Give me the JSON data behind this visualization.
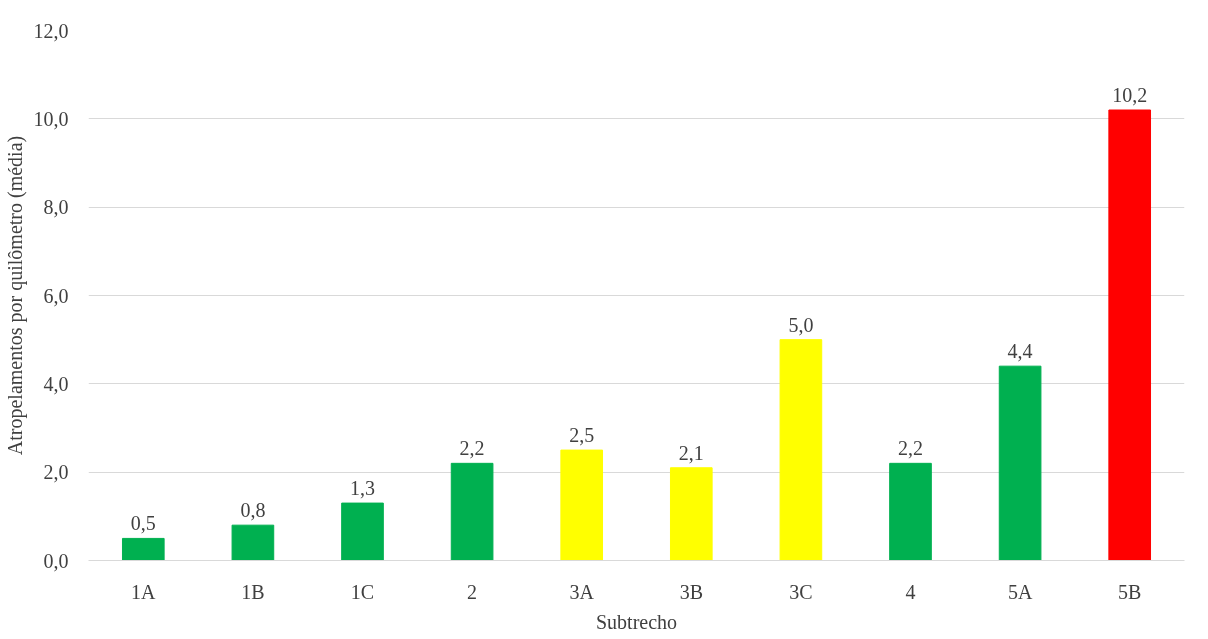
{
  "chart_data": {
    "type": "bar",
    "xlabel": "Subtrecho",
    "ylabel": "Atropelamentos por quilômetro (média)",
    "categories": [
      "1A",
      "1B",
      "1C",
      "2",
      "3A",
      "3B",
      "3C",
      "4",
      "5A",
      "5B"
    ],
    "values": [
      0.5,
      0.8,
      1.3,
      2.2,
      2.5,
      2.1,
      5.0,
      2.2,
      4.4,
      10.2
    ],
    "colors": [
      "#00b050",
      "#00b050",
      "#00b050",
      "#00b050",
      "#ffff00",
      "#ffff00",
      "#ffff00",
      "#00b050",
      "#00b050",
      "#ff0000"
    ],
    "value_labels": [
      "0,5",
      "0,8",
      "1,3",
      "2,2",
      "2,5",
      "2,1",
      "5,0",
      "2,2",
      "4,4",
      "10,2"
    ],
    "ylim": [
      0,
      12
    ],
    "yticks": [
      {
        "value": 0,
        "label": "0,0"
      },
      {
        "value": 2,
        "label": "2,0"
      },
      {
        "value": 4,
        "label": "4,0"
      },
      {
        "value": 6,
        "label": "6,0"
      },
      {
        "value": 8,
        "label": "8,0"
      },
      {
        "value": 10,
        "label": "10,0"
      },
      {
        "value": 12,
        "label": "12,0"
      }
    ],
    "grid": "y"
  }
}
